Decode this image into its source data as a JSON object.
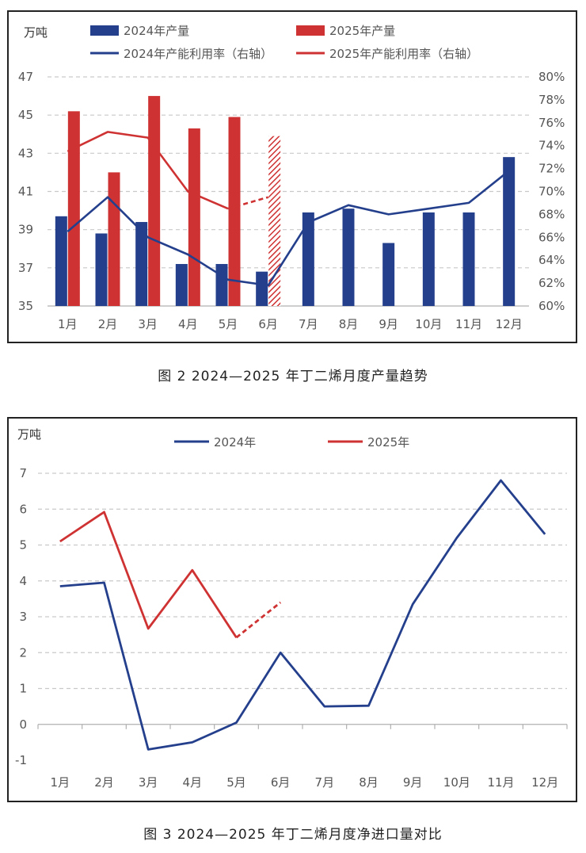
{
  "figure2": {
    "caption": "图 2  2024—2025 年丁二烯月度产量趋势",
    "unit": "万吨",
    "legend": {
      "bar2024": "2024年产量",
      "bar2025": "2025年产量",
      "line2024": "2024年产能利用率（右轴）",
      "line2025": "2025年产能利用率（右轴）"
    },
    "colors": {
      "c2024": "#243f8c",
      "c2025": "#cf3232"
    }
  },
  "figure3": {
    "caption": "图 3  2024—2025 年丁二烯月度净进口量对比",
    "unit": "万吨",
    "legend": {
      "line2024": "2024年",
      "line2025": "2025年"
    },
    "colors": {
      "c2024": "#243f8c",
      "c2025": "#cf3232"
    }
  },
  "chart_data": [
    {
      "type": "bar",
      "categories": [
        "1月",
        "2月",
        "3月",
        "4月",
        "5月",
        "6月",
        "7月",
        "8月",
        "9月",
        "10月",
        "11月",
        "12月"
      ],
      "ylabel": "万吨",
      "ylim": [
        35,
        47
      ],
      "yticks": [
        "35",
        "37",
        "39",
        "41",
        "43",
        "45",
        "47"
      ],
      "y2lim": [
        60,
        80
      ],
      "y2ticks": [
        "60%",
        "62%",
        "64%",
        "66%",
        "68%",
        "70%",
        "72%",
        "74%",
        "76%",
        "78%",
        "80%"
      ],
      "grid": true,
      "legend_position": "top",
      "series": [
        {
          "name": "2024年产量",
          "kind": "bar",
          "axis": "left",
          "values": [
            39.7,
            38.8,
            39.4,
            37.2,
            37.2,
            36.8,
            39.9,
            40.1,
            38.3,
            39.9,
            39.9,
            42.8
          ]
        },
        {
          "name": "2025年产量",
          "kind": "bar",
          "axis": "left",
          "values": [
            45.2,
            42.0,
            46.0,
            44.3,
            44.9,
            43.9,
            null,
            null,
            null,
            null,
            null,
            null
          ],
          "estimated_index": 5
        },
        {
          "name": "2024年产能利用率（右轴）",
          "kind": "line",
          "axis": "right",
          "values": [
            66.5,
            69.5,
            66.0,
            64.5,
            62.3,
            61.8,
            67.3,
            68.8,
            68.0,
            68.5,
            69.0,
            71.8
          ]
        },
        {
          "name": "2025年产能利用率（右轴）",
          "kind": "line",
          "axis": "right",
          "values": [
            73.5,
            75.2,
            74.7,
            70.0,
            68.5,
            69.5,
            null,
            null,
            null,
            null,
            null,
            null
          ],
          "dashed_from_index": 4
        }
      ]
    },
    {
      "type": "line",
      "categories": [
        "1月",
        "2月",
        "3月",
        "4月",
        "5月",
        "6月",
        "7月",
        "8月",
        "9月",
        "10月",
        "11月",
        "12月"
      ],
      "ylabel": "万吨",
      "ylim": [
        -1,
        7
      ],
      "yticks": [
        "-1",
        "0",
        "1",
        "2",
        "3",
        "4",
        "5",
        "6",
        "7"
      ],
      "grid": true,
      "legend_position": "top",
      "series": [
        {
          "name": "2024年",
          "values": [
            3.85,
            3.95,
            -0.7,
            -0.5,
            0.05,
            2.0,
            0.5,
            0.52,
            3.35,
            5.2,
            6.8,
            5.3
          ]
        },
        {
          "name": "2025年",
          "values": [
            5.1,
            5.92,
            2.67,
            4.3,
            2.42,
            3.4,
            null,
            null,
            null,
            null,
            null,
            null
          ],
          "dashed_from_index": 4
        }
      ]
    }
  ]
}
